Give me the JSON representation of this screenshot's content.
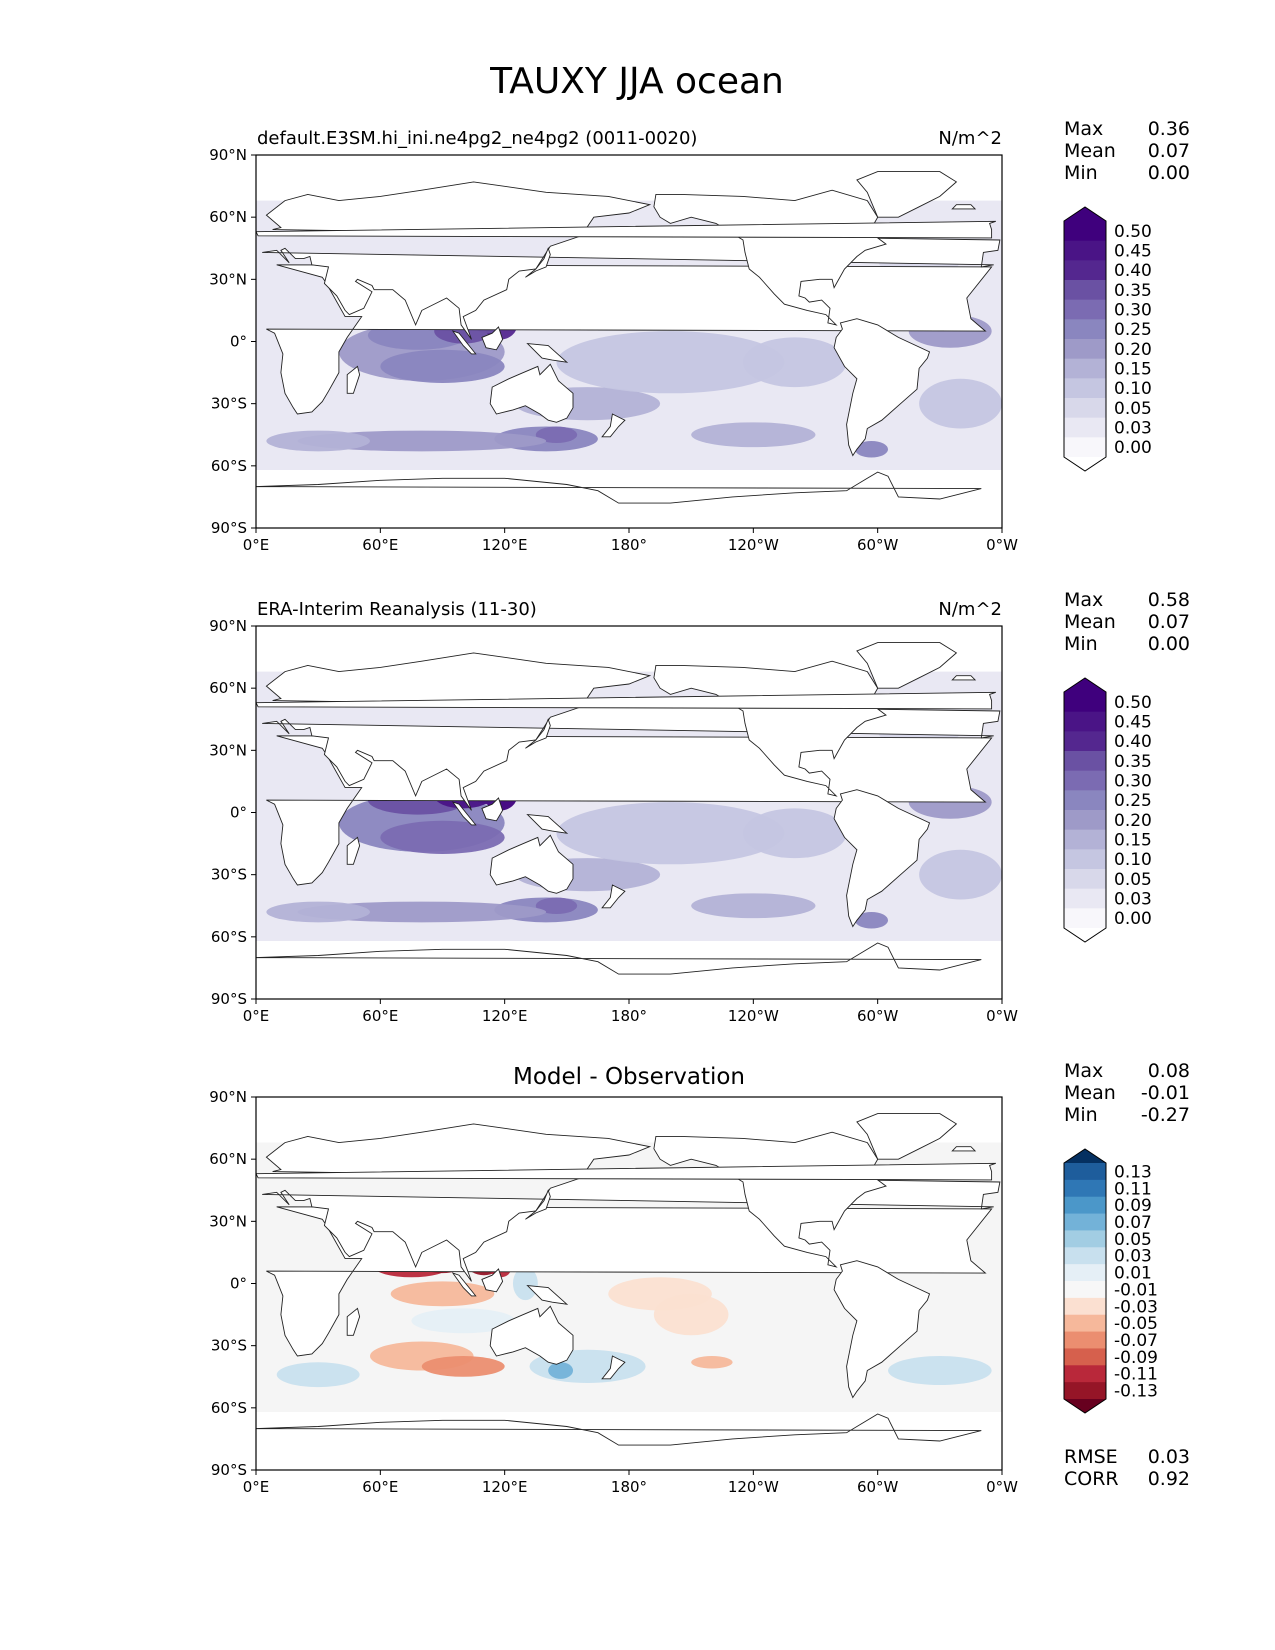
{
  "figure": {
    "title": "TAUXY JJA ocean"
  },
  "axes": {
    "lat_ticks": [
      "90°N",
      "60°N",
      "30°N",
      "0°",
      "30°S",
      "60°S",
      "90°S"
    ],
    "lon_ticks": [
      "0°E",
      "60°E",
      "120°E",
      "180°",
      "120°W",
      "60°W",
      "0°W"
    ]
  },
  "panels": [
    {
      "id": "model",
      "left_title": "default.E3SM.hi_ini.ne4pg2_ne4pg2 (0011-0020)",
      "center_title": "",
      "right_title": "N/m^2",
      "stats": [
        {
          "label": "Max",
          "value": "0.36"
        },
        {
          "label": "Mean",
          "value": "0.07"
        },
        {
          "label": "Min",
          "value": "0.00"
        }
      ],
      "colorbar": {
        "levels": [
          "0.50",
          "0.45",
          "0.40",
          "0.35",
          "0.30",
          "0.25",
          "0.20",
          "0.15",
          "0.10",
          "0.05",
          "0.03",
          "0.00"
        ],
        "colors": [
          "#3f007d",
          "#4a1486",
          "#54278f",
          "#6a51a3",
          "#7b6bb2",
          "#8a86bf",
          "#9e9ac8",
          "#b3b2d6",
          "#c5c6e1",
          "#d8d8ea",
          "#e9e8f3",
          "#f8f7fb"
        ],
        "over_color": "#3f007d",
        "under_color": "#ffffff"
      }
    },
    {
      "id": "obs",
      "left_title": "ERA-Interim Reanalysis (11-30)",
      "center_title": "",
      "right_title": "N/m^2",
      "stats": [
        {
          "label": "Max",
          "value": "0.58"
        },
        {
          "label": "Mean",
          "value": "0.07"
        },
        {
          "label": "Min",
          "value": "0.00"
        }
      ],
      "colorbar": {
        "levels": [
          "0.50",
          "0.45",
          "0.40",
          "0.35",
          "0.30",
          "0.25",
          "0.20",
          "0.15",
          "0.10",
          "0.05",
          "0.03",
          "0.00"
        ],
        "colors": [
          "#3f007d",
          "#4a1486",
          "#54278f",
          "#6a51a3",
          "#7b6bb2",
          "#8a86bf",
          "#9e9ac8",
          "#b3b2d6",
          "#c5c6e1",
          "#d8d8ea",
          "#e9e8f3",
          "#f8f7fb"
        ],
        "over_color": "#3f007d",
        "under_color": "#ffffff"
      }
    },
    {
      "id": "diff",
      "left_title": "",
      "center_title": "Model - Observation",
      "right_title": "",
      "stats": [
        {
          "label": "Max",
          "value": "0.08"
        },
        {
          "label": "Mean",
          "value": "-0.01"
        },
        {
          "label": "Min",
          "value": "-0.27"
        }
      ],
      "bottom_stats": [
        {
          "label": "RMSE",
          "value": "0.03"
        },
        {
          "label": "CORR",
          "value": "0.92"
        }
      ],
      "colorbar": {
        "levels": [
          "0.13",
          "0.11",
          "0.09",
          "0.07",
          "0.05",
          "0.03",
          "0.01",
          "-0.01",
          "-0.03",
          "-0.05",
          "-0.07",
          "-0.09",
          "-0.11",
          "-0.13"
        ],
        "colors": [
          "#1e5d9c",
          "#2f77b5",
          "#4b97c9",
          "#73b2d8",
          "#a2cde3",
          "#c8e0ee",
          "#e5eff6",
          "#f7f7f7",
          "#fbe0d1",
          "#f6b89b",
          "#eb8e70",
          "#d6604d",
          "#b9283a",
          "#951527"
        ],
        "over_color": "#053061",
        "under_color": "#67001f"
      }
    }
  ],
  "map_colors": {
    "land": "#ffffff",
    "coast": "#222222",
    "ocean_base_seq": "#e9e8f3",
    "ocean_base_diff": "#f5f5f5"
  }
}
